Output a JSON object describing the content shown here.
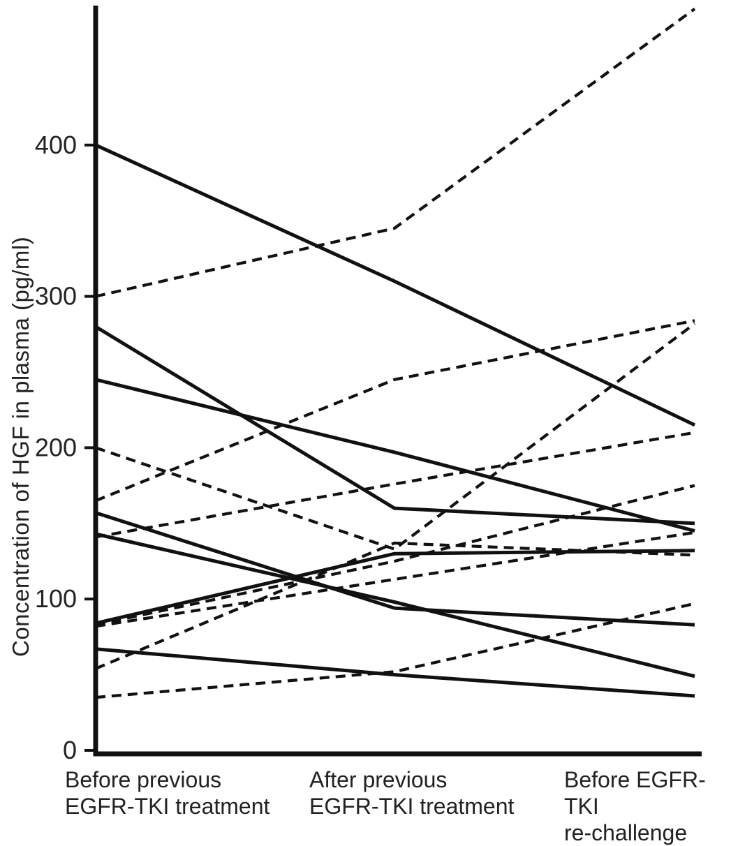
{
  "chart_data": {
    "type": "line",
    "title": "",
    "ylabel": "Concentration of HGF in plasma (pg/ml)",
    "xlabel": "",
    "categories": [
      "Before previous\nEGFR-TKI treatment",
      "After previous\nEGFR-TKI treatment",
      "Before EGFR-TKI\nre-challenge"
    ],
    "y_ticks": [
      0,
      100,
      200,
      300,
      400
    ],
    "ylim": [
      0,
      495
    ],
    "grid": false,
    "legend": "none",
    "line_color": "#111111",
    "text_color": "#222222",
    "series": [
      {
        "style": "solid",
        "values": [
          400,
          310,
          215
        ]
      },
      {
        "style": "solid",
        "values": [
          280,
          160,
          150
        ]
      },
      {
        "style": "solid",
        "values": [
          245,
          197,
          145
        ]
      },
      {
        "style": "solid",
        "values": [
          157,
          94,
          83
        ]
      },
      {
        "style": "solid",
        "values": [
          143,
          98,
          49
        ]
      },
      {
        "style": "solid",
        "values": [
          84,
          130,
          132
        ]
      },
      {
        "style": "solid",
        "values": [
          67,
          50,
          36
        ]
      },
      {
        "style": "dashed",
        "values": [
          300,
          345,
          490
        ]
      },
      {
        "style": "dashed",
        "values": [
          200,
          133,
          282
        ]
      },
      {
        "style": "dashed",
        "values": [
          165,
          245,
          284
        ]
      },
      {
        "style": "dashed",
        "values": [
          141,
          176,
          210
        ]
      },
      {
        "style": "dashed",
        "values": [
          83,
          125,
          175
        ]
      },
      {
        "style": "dashed",
        "values": [
          82,
          113,
          144
        ]
      },
      {
        "style": "dashed",
        "values": [
          54,
          137,
          129
        ]
      },
      {
        "style": "dashed",
        "values": [
          35,
          52,
          97
        ]
      }
    ]
  }
}
